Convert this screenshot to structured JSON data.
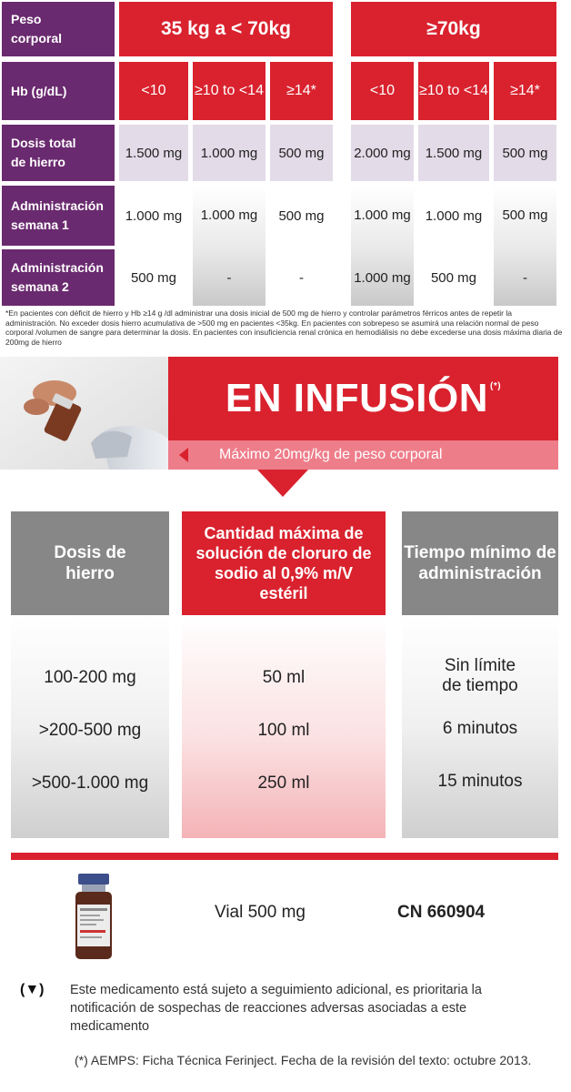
{
  "dose_table": {
    "row_labels": {
      "weight": "Peso corporal",
      "hb": "Hb (g/dL)",
      "total_iron": "Dosis total de hierro",
      "week1": "Administración semana 1",
      "week2": "Administración semana 2"
    },
    "weight_groups": [
      "35 kg a  < 70kg",
      "≥70kg"
    ],
    "hb_ranges": [
      "<10",
      "≥10 to <14",
      "≥14*",
      "<10",
      "≥10 to <14",
      "≥14*"
    ],
    "total_iron": [
      "1.500 mg",
      "1.000 mg",
      "500 mg",
      "2.000 mg",
      "1.500 mg",
      "500 mg"
    ],
    "week1": [
      "1.000 mg",
      "1.000 mg",
      "500 mg",
      "1.000 mg",
      "1.000 mg",
      "500 mg"
    ],
    "week2": [
      "500 mg",
      "-",
      "-",
      "1.000 mg",
      "500 mg",
      "-"
    ],
    "footnote": "*En pacientes con déficit de hierro y Hb ≥14 g /dl administrar una dosis inicial de 500 mg de hierro y controlar parámetros férricos antes de repetir la administración. No exceder dosis hierro acumulativa de >500 mg en pacientes <35kg.  En pacientes con sobrepeso se asumirá una relación normal de peso corporal /volumen de sangre para determinar la dosis. En pacientes con insuficiencia renal crónica en hemodiálisis no debe excederse una dosis máxima diaria de 200mg de hierro"
  },
  "infusion": {
    "title": "EN INFUSIÓN",
    "title_mark": "(*)",
    "subtitle": "Máximo 20mg/kg de peso corporal",
    "headers": [
      "Dosis de hierro",
      "Cantidad máxima de solución de cloruro de sodio al 0,9% m/V estéril",
      "Tiempo mínimo de administración"
    ],
    "rows": [
      {
        "dose": "100-200 mg",
        "saline": "50 ml",
        "time": "Sin límite de tiempo"
      },
      {
        "dose": ">200-500 mg",
        "saline": "100 ml",
        "time": "6 minutos"
      },
      {
        "dose": ">500-1.000 mg",
        "saline": "250 ml",
        "time": "15 minutos"
      }
    ]
  },
  "product": {
    "vial": "Vial 500 mg",
    "cn": "CN 660904"
  },
  "notice": {
    "symbol": "(▼)",
    "text": "Este medicamento está sujeto a seguimiento adicional, es prioritaria la notificación de sospechas de reacciones adversas asociadas a este medicamento"
  },
  "reference": "(*) AEMPS: Ficha Técnica Ferinject. Fecha de la revisión del texto: octubre 2013.",
  "colors": {
    "purple": "#6a2a6f",
    "red": "#d9222e",
    "lavender": "#e3dbe8",
    "gray": "#878787",
    "pink": "#ee7d8a"
  }
}
